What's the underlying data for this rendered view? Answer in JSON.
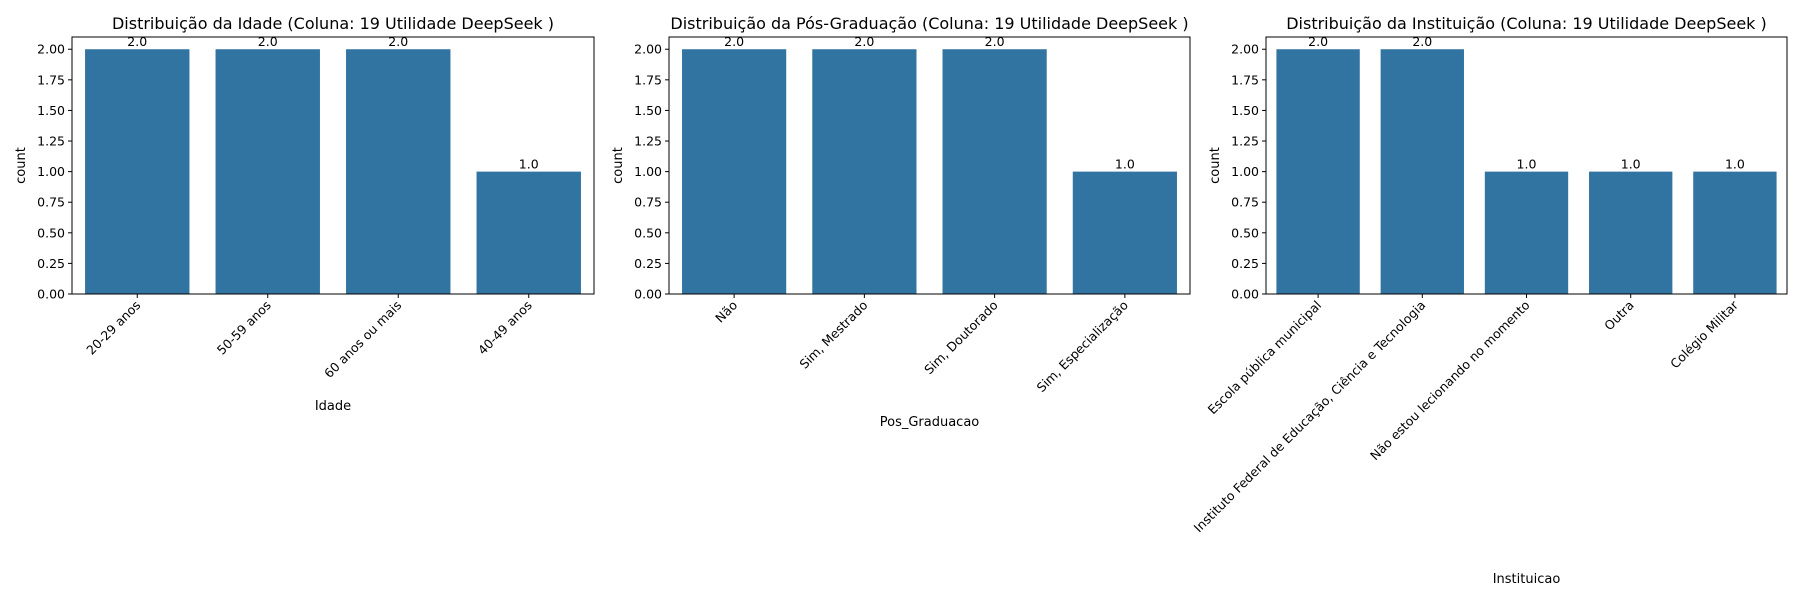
{
  "chart_data": [
    {
      "type": "bar",
      "title": "Distribuição da Idade (Coluna: 19 Utilidade DeepSeek )",
      "xlabel": "Idade",
      "ylabel": "count",
      "categories": [
        "20-29 anos",
        "50-59 anos",
        "60 anos ou mais",
        "40-49 anos"
      ],
      "values": [
        2.0,
        2.0,
        2.0,
        1.0
      ],
      "data_labels": [
        "2.0",
        "2.0",
        "2.0",
        "1.0"
      ],
      "ylim": [
        0,
        2.1
      ],
      "yticks": [
        "0.00",
        "0.25",
        "0.50",
        "0.75",
        "1.00",
        "1.25",
        "1.50",
        "1.75",
        "2.00"
      ],
      "bar_color": "#3274a1",
      "grid": false
    },
    {
      "type": "bar",
      "title": "Distribuição da Pós-Graduação (Coluna: 19 Utilidade DeepSeek )",
      "xlabel": "Pos_Graduacao",
      "ylabel": "count",
      "categories": [
        "Não",
        "Sim, Mestrado",
        "Sim, Doutorado",
        "Sim, Especialização"
      ],
      "values": [
        2.0,
        2.0,
        2.0,
        1.0
      ],
      "data_labels": [
        "2.0",
        "2.0",
        "2.0",
        "1.0"
      ],
      "ylim": [
        0,
        2.1
      ],
      "yticks": [
        "0.00",
        "0.25",
        "0.50",
        "0.75",
        "1.00",
        "1.25",
        "1.50",
        "1.75",
        "2.00"
      ],
      "bar_color": "#3274a1",
      "grid": false
    },
    {
      "type": "bar",
      "title": "Distribuição da Instituição (Coluna: 19 Utilidade DeepSeek )",
      "xlabel": "Instituicao",
      "ylabel": "count",
      "categories": [
        "Escola pública municipal",
        "Instituto Federal de Educação, Ciência e Tecnologia",
        "Não estou lecionando no momento",
        "Outra",
        "Colégio Militar"
      ],
      "values": [
        2.0,
        2.0,
        1.0,
        1.0,
        1.0
      ],
      "data_labels": [
        "2.0",
        "2.0",
        "1.0",
        "1.0",
        "1.0"
      ],
      "ylim": [
        0,
        2.1
      ],
      "yticks": [
        "0.00",
        "0.25",
        "0.50",
        "0.75",
        "1.00",
        "1.25",
        "1.50",
        "1.75",
        "2.00"
      ],
      "bar_color": "#3274a1",
      "grid": false
    }
  ]
}
